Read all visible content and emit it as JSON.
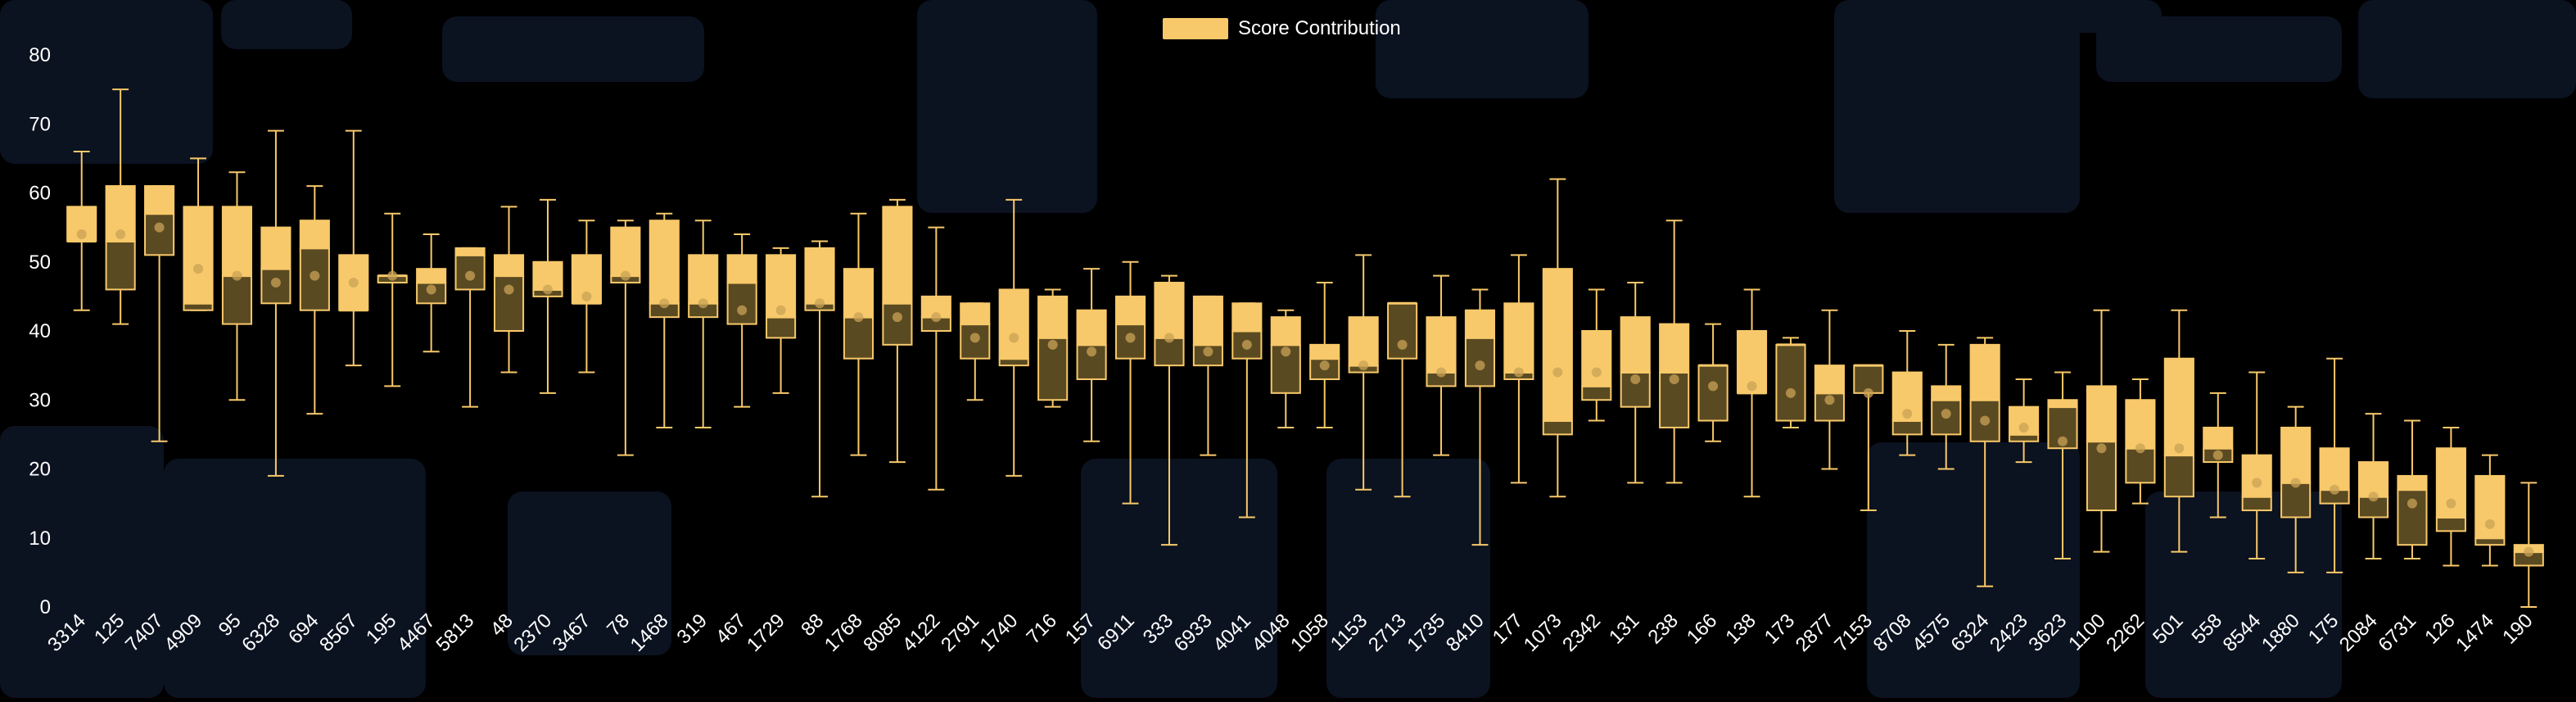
{
  "chart_data": {
    "type": "boxplot",
    "legend": {
      "label": "Score Contribution",
      "position": "top-center"
    },
    "colors": {
      "box_fill": "#F8C96A",
      "box_stroke": "#F8C96A",
      "whisker": "#F8C96A",
      "median_dark": "#5A4A22",
      "mean_marker": "#C9A255",
      "text": "#FFFFFF",
      "background": "#000000"
    },
    "ylim": [
      0,
      80
    ],
    "yticks": [
      0,
      10,
      20,
      30,
      40,
      50,
      60,
      70,
      80
    ],
    "grid": false,
    "categories": [
      "3314",
      "125",
      "7407",
      "4909",
      "95",
      "6328",
      "694",
      "8567",
      "195",
      "4467",
      "5813",
      "48",
      "2370",
      "3467",
      "78",
      "1468",
      "319",
      "467",
      "1729",
      "88",
      "1768",
      "8085",
      "4122",
      "2791",
      "1740",
      "716",
      "157",
      "6911",
      "333",
      "6933",
      "4041",
      "4048",
      "1058",
      "1153",
      "2713",
      "1735",
      "8410",
      "177",
      "1073",
      "2342",
      "131",
      "238",
      "166",
      "138",
      "173",
      "2877",
      "7153",
      "8708",
      "4575",
      "6324",
      "2423",
      "3623",
      "1100",
      "2262",
      "501",
      "558",
      "8544",
      "1880",
      "175",
      "2084",
      "6731",
      "126",
      "1474",
      "190"
    ],
    "boxes": [
      {
        "min": 43,
        "q1": 53,
        "median": 53,
        "q3": 58,
        "max": 66,
        "mean": 54
      },
      {
        "min": 41,
        "q1": 46,
        "median": 53,
        "q3": 61,
        "max": 75,
        "mean": 54
      },
      {
        "min": 24,
        "q1": 51,
        "median": 57,
        "q3": 61,
        "max": 61,
        "mean": 55
      },
      {
        "min": 43,
        "q1": 43,
        "median": 44,
        "q3": 58,
        "max": 65,
        "mean": 49
      },
      {
        "min": 30,
        "q1": 41,
        "median": 48,
        "q3": 58,
        "max": 63,
        "mean": 48
      },
      {
        "min": 19,
        "q1": 44,
        "median": 49,
        "q3": 55,
        "max": 69,
        "mean": 47
      },
      {
        "min": 28,
        "q1": 43,
        "median": 52,
        "q3": 56,
        "max": 61,
        "mean": 48
      },
      {
        "min": 35,
        "q1": 43,
        "median": 43,
        "q3": 51,
        "max": 69,
        "mean": 47
      },
      {
        "min": 32,
        "q1": 47,
        "median": 48,
        "q3": 48,
        "max": 57,
        "mean": 48
      },
      {
        "min": 37,
        "q1": 44,
        "median": 47,
        "q3": 49,
        "max": 54,
        "mean": 46
      },
      {
        "min": 29,
        "q1": 46,
        "median": 51,
        "q3": 52,
        "max": 52,
        "mean": 48
      },
      {
        "min": 34,
        "q1": 40,
        "median": 48,
        "q3": 51,
        "max": 58,
        "mean": 46
      },
      {
        "min": 31,
        "q1": 45,
        "median": 46,
        "q3": 50,
        "max": 59,
        "mean": 46
      },
      {
        "min": 34,
        "q1": 44,
        "median": 44,
        "q3": 51,
        "max": 56,
        "mean": 45
      },
      {
        "min": 22,
        "q1": 47,
        "median": 48,
        "q3": 55,
        "max": 56,
        "mean": 48
      },
      {
        "min": 26,
        "q1": 42,
        "median": 44,
        "q3": 56,
        "max": 57,
        "mean": 44
      },
      {
        "min": 26,
        "q1": 42,
        "median": 44,
        "q3": 51,
        "max": 56,
        "mean": 44
      },
      {
        "min": 29,
        "q1": 41,
        "median": 47,
        "q3": 51,
        "max": 54,
        "mean": 43
      },
      {
        "min": 31,
        "q1": 39,
        "median": 42,
        "q3": 51,
        "max": 52,
        "mean": 43
      },
      {
        "min": 16,
        "q1": 43,
        "median": 44,
        "q3": 52,
        "max": 53,
        "mean": 44
      },
      {
        "min": 22,
        "q1": 36,
        "median": 42,
        "q3": 49,
        "max": 57,
        "mean": 42
      },
      {
        "min": 21,
        "q1": 38,
        "median": 44,
        "q3": 58,
        "max": 59,
        "mean": 42
      },
      {
        "min": 17,
        "q1": 40,
        "median": 42,
        "q3": 45,
        "max": 55,
        "mean": 42
      },
      {
        "min": 30,
        "q1": 36,
        "median": 41,
        "q3": 44,
        "max": 44,
        "mean": 39
      },
      {
        "min": 19,
        "q1": 35,
        "median": 36,
        "q3": 46,
        "max": 59,
        "mean": 39
      },
      {
        "min": 29,
        "q1": 30,
        "median": 39,
        "q3": 45,
        "max": 46,
        "mean": 38
      },
      {
        "min": 24,
        "q1": 33,
        "median": 38,
        "q3": 43,
        "max": 49,
        "mean": 37
      },
      {
        "min": 15,
        "q1": 36,
        "median": 41,
        "q3": 45,
        "max": 50,
        "mean": 39
      },
      {
        "min": 9,
        "q1": 35,
        "median": 39,
        "q3": 47,
        "max": 48,
        "mean": 39
      },
      {
        "min": 22,
        "q1": 35,
        "median": 38,
        "q3": 45,
        "max": 45,
        "mean": 37
      },
      {
        "min": 13,
        "q1": 36,
        "median": 40,
        "q3": 44,
        "max": 44,
        "mean": 38
      },
      {
        "min": 26,
        "q1": 31,
        "median": 38,
        "q3": 42,
        "max": 43,
        "mean": 37
      },
      {
        "min": 26,
        "q1": 33,
        "median": 36,
        "q3": 38,
        "max": 47,
        "mean": 35
      },
      {
        "min": 17,
        "q1": 34,
        "median": 35,
        "q3": 42,
        "max": 51,
        "mean": 35
      },
      {
        "min": 16,
        "q1": 36,
        "median": 44,
        "q3": 44,
        "max": 44,
        "mean": 38
      },
      {
        "min": 22,
        "q1": 32,
        "median": 34,
        "q3": 42,
        "max": 48,
        "mean": 34
      },
      {
        "min": 9,
        "q1": 32,
        "median": 39,
        "q3": 43,
        "max": 46,
        "mean": 35
      },
      {
        "min": 18,
        "q1": 33,
        "median": 34,
        "q3": 44,
        "max": 51,
        "mean": 34
      },
      {
        "min": 16,
        "q1": 25,
        "median": 27,
        "q3": 49,
        "max": 62,
        "mean": 34
      },
      {
        "min": 27,
        "q1": 30,
        "median": 32,
        "q3": 40,
        "max": 46,
        "mean": 34
      },
      {
        "min": 18,
        "q1": 29,
        "median": 34,
        "q3": 42,
        "max": 47,
        "mean": 33
      },
      {
        "min": 18,
        "q1": 26,
        "median": 34,
        "q3": 41,
        "max": 56,
        "mean": 33
      },
      {
        "min": 24,
        "q1": 27,
        "median": 35,
        "q3": 35,
        "max": 41,
        "mean": 32
      },
      {
        "min": 16,
        "q1": 31,
        "median": 31,
        "q3": 40,
        "max": 46,
        "mean": 32
      },
      {
        "min": 26,
        "q1": 27,
        "median": 38,
        "q3": 38,
        "max": 39,
        "mean": 31
      },
      {
        "min": 20,
        "q1": 27,
        "median": 31,
        "q3": 35,
        "max": 43,
        "mean": 30
      },
      {
        "min": 14,
        "q1": 31,
        "median": 35,
        "q3": 35,
        "max": 35,
        "mean": 31
      },
      {
        "min": 22,
        "q1": 25,
        "median": 27,
        "q3": 34,
        "max": 40,
        "mean": 28
      },
      {
        "min": 20,
        "q1": 25,
        "median": 30,
        "q3": 32,
        "max": 38,
        "mean": 28
      },
      {
        "min": 3,
        "q1": 24,
        "median": 30,
        "q3": 38,
        "max": 39,
        "mean": 27
      },
      {
        "min": 21,
        "q1": 24,
        "median": 25,
        "q3": 29,
        "max": 33,
        "mean": 26
      },
      {
        "min": 7,
        "q1": 23,
        "median": 29,
        "q3": 30,
        "max": 34,
        "mean": 24
      },
      {
        "min": 8,
        "q1": 14,
        "median": 24,
        "q3": 32,
        "max": 43,
        "mean": 23
      },
      {
        "min": 15,
        "q1": 18,
        "median": 23,
        "q3": 30,
        "max": 33,
        "mean": 23
      },
      {
        "min": 8,
        "q1": 16,
        "median": 22,
        "q3": 36,
        "max": 43,
        "mean": 23
      },
      {
        "min": 13,
        "q1": 21,
        "median": 23,
        "q3": 26,
        "max": 31,
        "mean": 22
      },
      {
        "min": 7,
        "q1": 14,
        "median": 16,
        "q3": 22,
        "max": 34,
        "mean": 18
      },
      {
        "min": 5,
        "q1": 13,
        "median": 18,
        "q3": 26,
        "max": 29,
        "mean": 18
      },
      {
        "min": 5,
        "q1": 15,
        "median": 17,
        "q3": 23,
        "max": 36,
        "mean": 17
      },
      {
        "min": 7,
        "q1": 13,
        "median": 16,
        "q3": 21,
        "max": 28,
        "mean": 16
      },
      {
        "min": 7,
        "q1": 9,
        "median": 17,
        "q3": 19,
        "max": 27,
        "mean": 15
      },
      {
        "min": 6,
        "q1": 11,
        "median": 13,
        "q3": 23,
        "max": 26,
        "mean": 15
      },
      {
        "min": 6,
        "q1": 9,
        "median": 10,
        "q3": 19,
        "max": 22,
        "mean": 12
      },
      {
        "min": 0,
        "q1": 6,
        "median": 8,
        "q3": 9,
        "max": 18,
        "mean": 8
      }
    ]
  }
}
